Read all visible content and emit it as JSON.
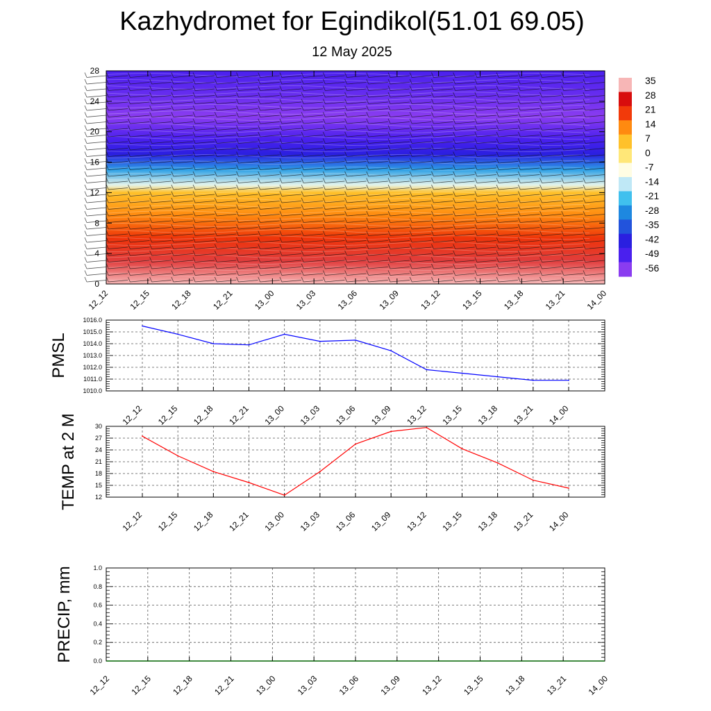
{
  "header": {
    "title": "Kazhydromet for Egindikol(51.01 69.05)",
    "subtitle": "12 May 2025"
  },
  "time_labels": [
    "12_12",
    "12_15",
    "12_18",
    "12_21",
    "13_00",
    "13_03",
    "13_06",
    "13_09",
    "13_12",
    "13_15",
    "13_18",
    "13_21",
    "14_00"
  ],
  "colorbar": {
    "labels": [
      "35",
      "28",
      "21",
      "14",
      "7",
      "0",
      "-7",
      "-14",
      "-21",
      "-28",
      "-35",
      "-42",
      "-49",
      "-56"
    ],
    "colors": [
      "#f7b6b6",
      "#d80d0d",
      "#f23a0a",
      "#ff8a10",
      "#ffc12a",
      "#ffe778",
      "#fffde3",
      "#bfe8f6",
      "#40c0ee",
      "#1e88e0",
      "#2253dc",
      "#2a1fe0",
      "#4a20ee",
      "#8a3cf0"
    ]
  },
  "chart_data": [
    {
      "type": "heatmap",
      "name": "vertical-cross-section",
      "x": [
        "12_12",
        "12_15",
        "12_18",
        "12_21",
        "13_00",
        "13_03",
        "13_06",
        "13_09",
        "13_12",
        "13_15",
        "13_18",
        "13_21",
        "14_00"
      ],
      "ylim": [
        0,
        28
      ],
      "yticks": [
        0,
        4,
        8,
        12,
        16,
        20,
        24,
        28
      ],
      "value_scale": [
        -56,
        35
      ],
      "temperature_profile": [
        {
          "height": 0,
          "value": 35
        },
        {
          "height": 3,
          "value": 30
        },
        {
          "height": 6,
          "value": 22
        },
        {
          "height": 9,
          "value": 14
        },
        {
          "height": 12,
          "value": 7
        },
        {
          "height": 13,
          "value": -10
        },
        {
          "height": 15,
          "value": -25
        },
        {
          "height": 17,
          "value": -42
        },
        {
          "height": 19,
          "value": -49
        },
        {
          "height": 22,
          "value": -56
        },
        {
          "height": 25,
          "value": -52
        },
        {
          "height": 28,
          "value": -49
        }
      ],
      "grid": false,
      "barbs": true
    },
    {
      "type": "line",
      "ylabel": "PMSL",
      "x": [
        "12_12",
        "12_15",
        "12_18",
        "12_21",
        "13_00",
        "13_03",
        "13_06",
        "13_09",
        "13_12",
        "13_15",
        "13_18",
        "13_21",
        "14_00"
      ],
      "series": [
        {
          "color": "#0000ff",
          "values": [
            1015.5,
            1014.8,
            1014.0,
            1013.9,
            1014.8,
            1014.2,
            1014.3,
            1013.4,
            1011.8,
            1011.5,
            1011.2,
            1010.9,
            1010.9
          ]
        }
      ],
      "ylim": [
        1010.0,
        1016.0
      ],
      "yticks": [
        "1010.0",
        "1011.0",
        "1012.0",
        "1013.0",
        "1014.0",
        "1015.0",
        "1016.0"
      ],
      "grid": true
    },
    {
      "type": "line",
      "ylabel": "TEMP at 2 M",
      "x": [
        "12_12",
        "12_15",
        "12_18",
        "12_21",
        "13_00",
        "13_03",
        "13_06",
        "13_09",
        "13_12",
        "13_15",
        "13_18",
        "13_21",
        "14_00"
      ],
      "series": [
        {
          "color": "#ff0000",
          "values": [
            27.5,
            22.5,
            18.5,
            15.7,
            12.5,
            18.5,
            25.5,
            28.7,
            29.7,
            24.3,
            20.7,
            16.3,
            14.3
          ]
        }
      ],
      "ylim": [
        12,
        30
      ],
      "yticks": [
        "12",
        "15",
        "18",
        "21",
        "24",
        "27",
        "30"
      ],
      "grid": true
    },
    {
      "type": "bar",
      "ylabel": "PRECIP, mm",
      "x": [
        "12_12",
        "12_15",
        "12_18",
        "12_21",
        "13_00",
        "13_03",
        "13_06",
        "13_09",
        "13_12",
        "13_15",
        "13_18",
        "13_21",
        "14_00"
      ],
      "values": [
        0,
        0,
        0,
        0,
        0,
        0,
        0,
        0,
        0,
        0,
        0,
        0,
        0
      ],
      "ylim": [
        0.0,
        1.0
      ],
      "yticks": [
        "0.0",
        "0.2",
        "0.4",
        "0.6",
        "0.8",
        "1.0"
      ],
      "grid": true
    }
  ]
}
